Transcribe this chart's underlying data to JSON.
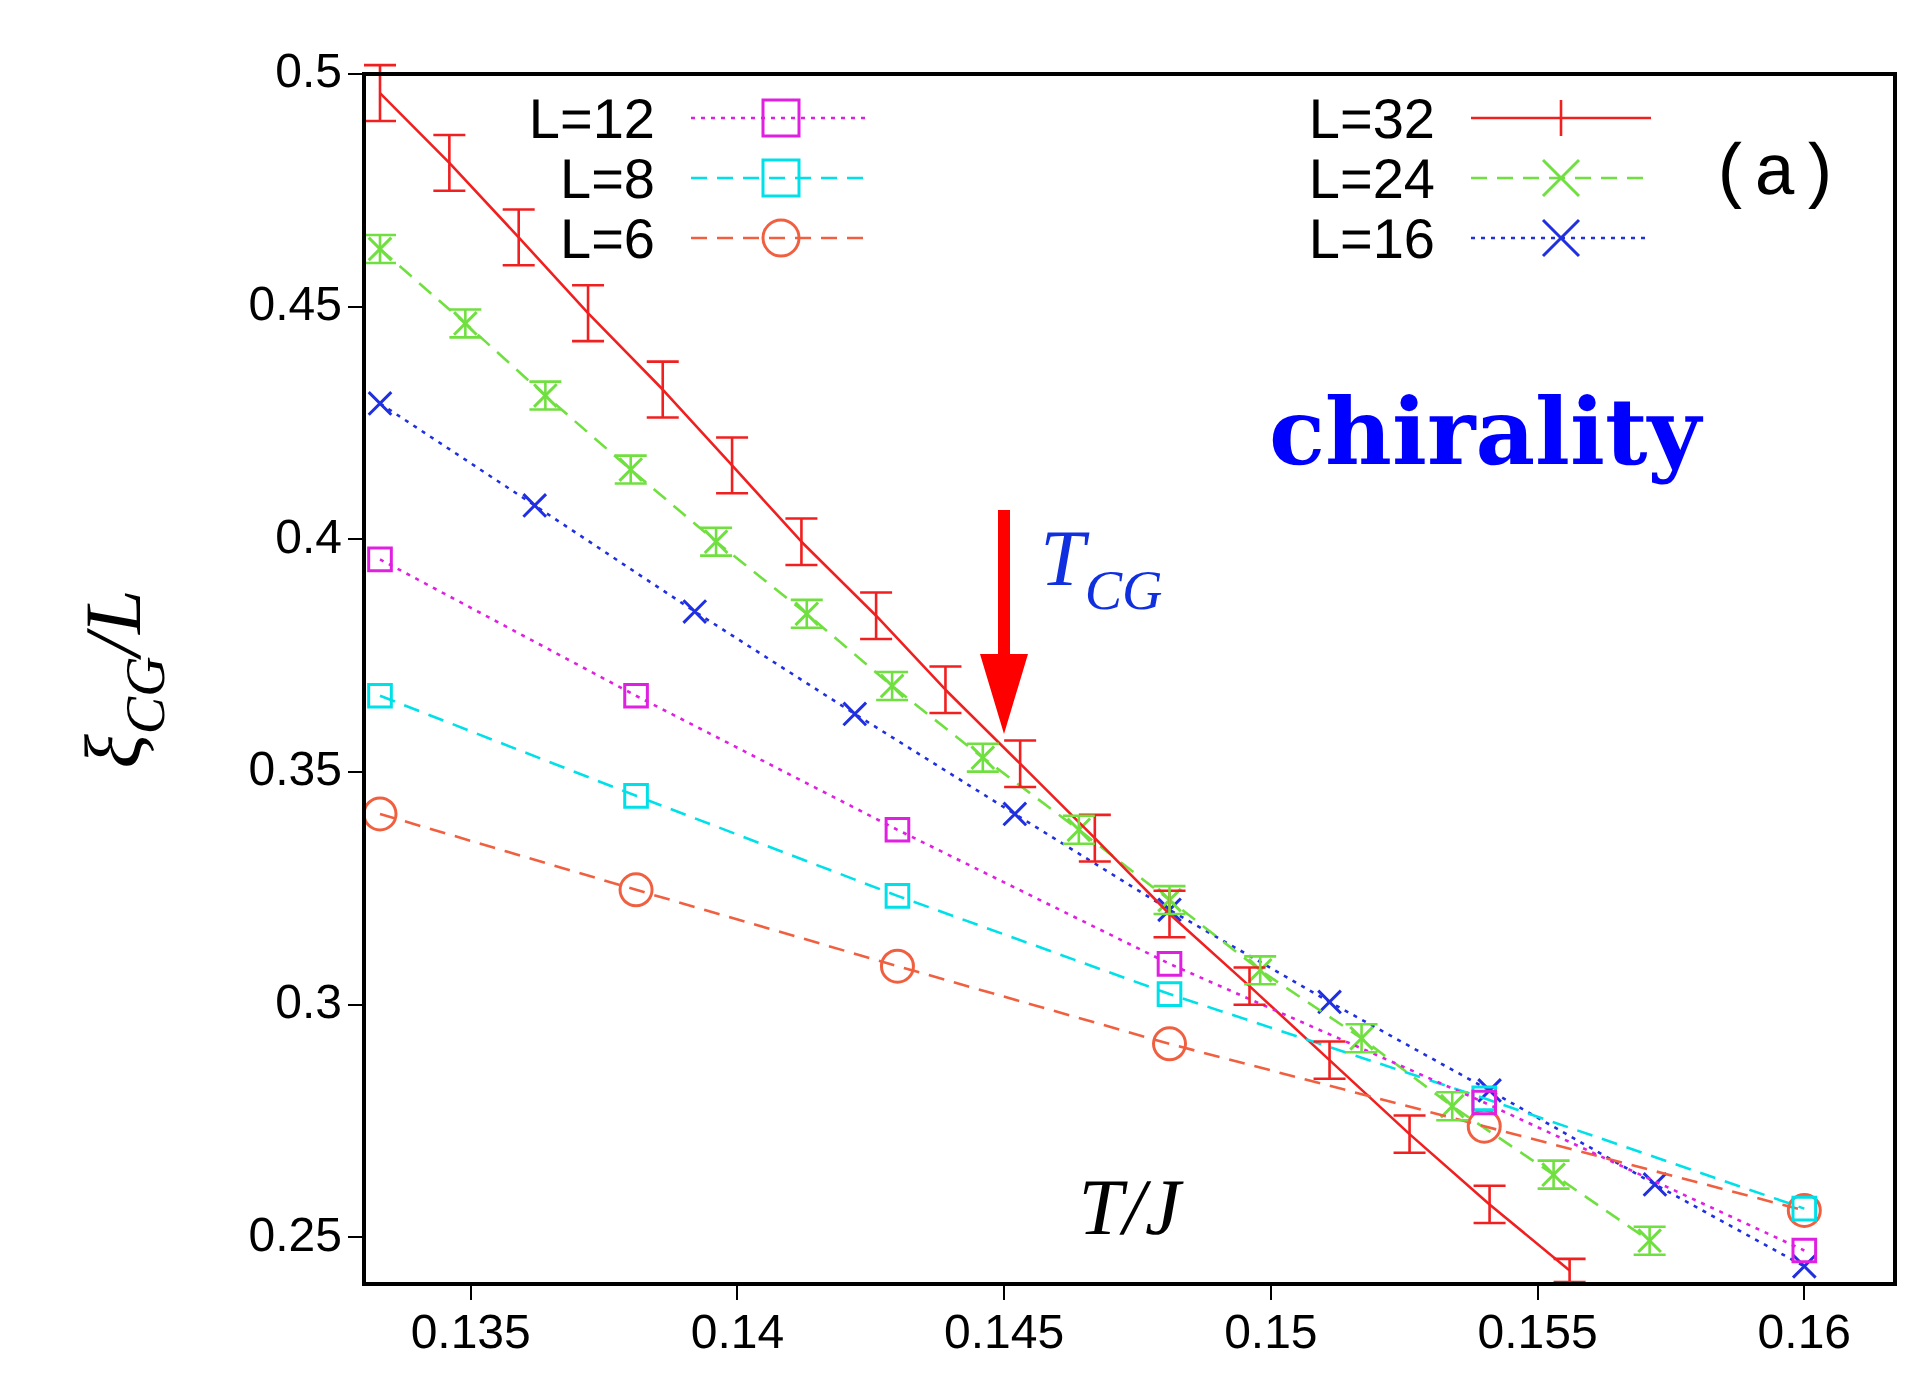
{
  "chart_data": {
    "type": "line",
    "xlabel": "T/J",
    "ylabel": "ξ$_{CG}$/L",
    "xlim": [
      0.133,
      0.1617
    ],
    "ylim": [
      0.24,
      0.5
    ],
    "xticks": [
      0.135,
      0.14,
      0.145,
      0.15,
      0.155,
      0.16
    ],
    "yticks": [
      0.25,
      0.3,
      0.35,
      0.4,
      0.45,
      0.5
    ],
    "legend": "top right",
    "annotations": [
      "(a)",
      "chirality",
      {
        "text": "T$_{CG}$",
        "x": 0.145,
        "y": 0.358
      }
    ],
    "series": [
      {
        "name": "L=12",
        "color": "#e020e0",
        "line_style": "dotted",
        "marker": "square",
        "x": [
          0.1333,
          0.1381,
          0.143,
          0.1481,
          0.154,
          0.16
        ],
        "values": [
          0.3957,
          0.3664,
          0.3376,
          0.3088,
          0.279,
          0.2472
        ]
      },
      {
        "name": "L=8",
        "color": "#00e0e8",
        "line_style": "dashed",
        "marker": "square",
        "x": [
          0.1333,
          0.1381,
          0.143,
          0.1481,
          0.154,
          0.16
        ],
        "values": [
          0.3664,
          0.3449,
          0.3234,
          0.3023,
          0.2799,
          0.2562
        ]
      },
      {
        "name": "L=6",
        "color": "#f06040",
        "line_style": "dashed",
        "marker": "circle",
        "x": [
          0.1333,
          0.1381,
          0.143,
          0.1481,
          0.154,
          0.16
        ],
        "values": [
          0.341,
          0.3247,
          0.3083,
          0.2916,
          0.2739,
          0.2558
        ]
      },
      {
        "name": "L=32",
        "color": "#f02020",
        "line_style": "solid",
        "marker": "none",
        "x": [
          0.1333,
          0.1346,
          0.1359,
          0.1372,
          0.1386,
          0.1399,
          0.1412,
          0.1426,
          0.1439,
          0.1453,
          0.1467,
          0.1481,
          0.1496,
          0.1511,
          0.1526,
          0.1541,
          0.1556
        ],
        "values": [
          0.4959,
          0.4809,
          0.4649,
          0.4486,
          0.4322,
          0.4159,
          0.3995,
          0.3836,
          0.3677,
          0.3518,
          0.3358,
          0.3195,
          0.304,
          0.2881,
          0.2722,
          0.2571,
          0.2429
        ],
        "errors": [
          0.006,
          0.006,
          0.006,
          0.006,
          0.006,
          0.006,
          0.005,
          0.005,
          0.005,
          0.005,
          0.005,
          0.005,
          0.004,
          0.004,
          0.004,
          0.004,
          0.0025
        ]
      },
      {
        "name": "L=24",
        "color": "#70e040",
        "line_style": "dashed",
        "marker": "cross",
        "x": [
          0.1333,
          0.1349,
          0.1364,
          0.138,
          0.1396,
          0.1413,
          0.1429,
          0.1446,
          0.1464,
          0.1481,
          0.1498,
          0.1517,
          0.1534,
          0.1553,
          0.1571
        ],
        "values": [
          0.4624,
          0.4464,
          0.4309,
          0.415,
          0.3995,
          0.384,
          0.3685,
          0.3531,
          0.3376,
          0.3225,
          0.3074,
          0.2928,
          0.2782,
          0.2635,
          0.2493
        ],
        "errors": [
          0.003,
          0.003,
          0.003,
          0.003,
          0.003,
          0.003,
          0.003,
          0.003,
          0.003,
          0.003,
          0.003,
          0.003,
          0.003,
          0.003,
          0.003
        ]
      },
      {
        "name": "L=16",
        "color": "#2030e0",
        "line_style": "dotted",
        "marker": "cross",
        "x": [
          0.1333,
          0.1362,
          0.1392,
          0.1422,
          0.1452,
          0.1481,
          0.1511,
          0.1541,
          0.1572,
          0.16
        ],
        "values": [
          0.4292,
          0.4073,
          0.3845,
          0.3625,
          0.341,
          0.3204,
          0.3006,
          0.2816,
          0.2614,
          0.2438
        ]
      }
    ]
  }
}
